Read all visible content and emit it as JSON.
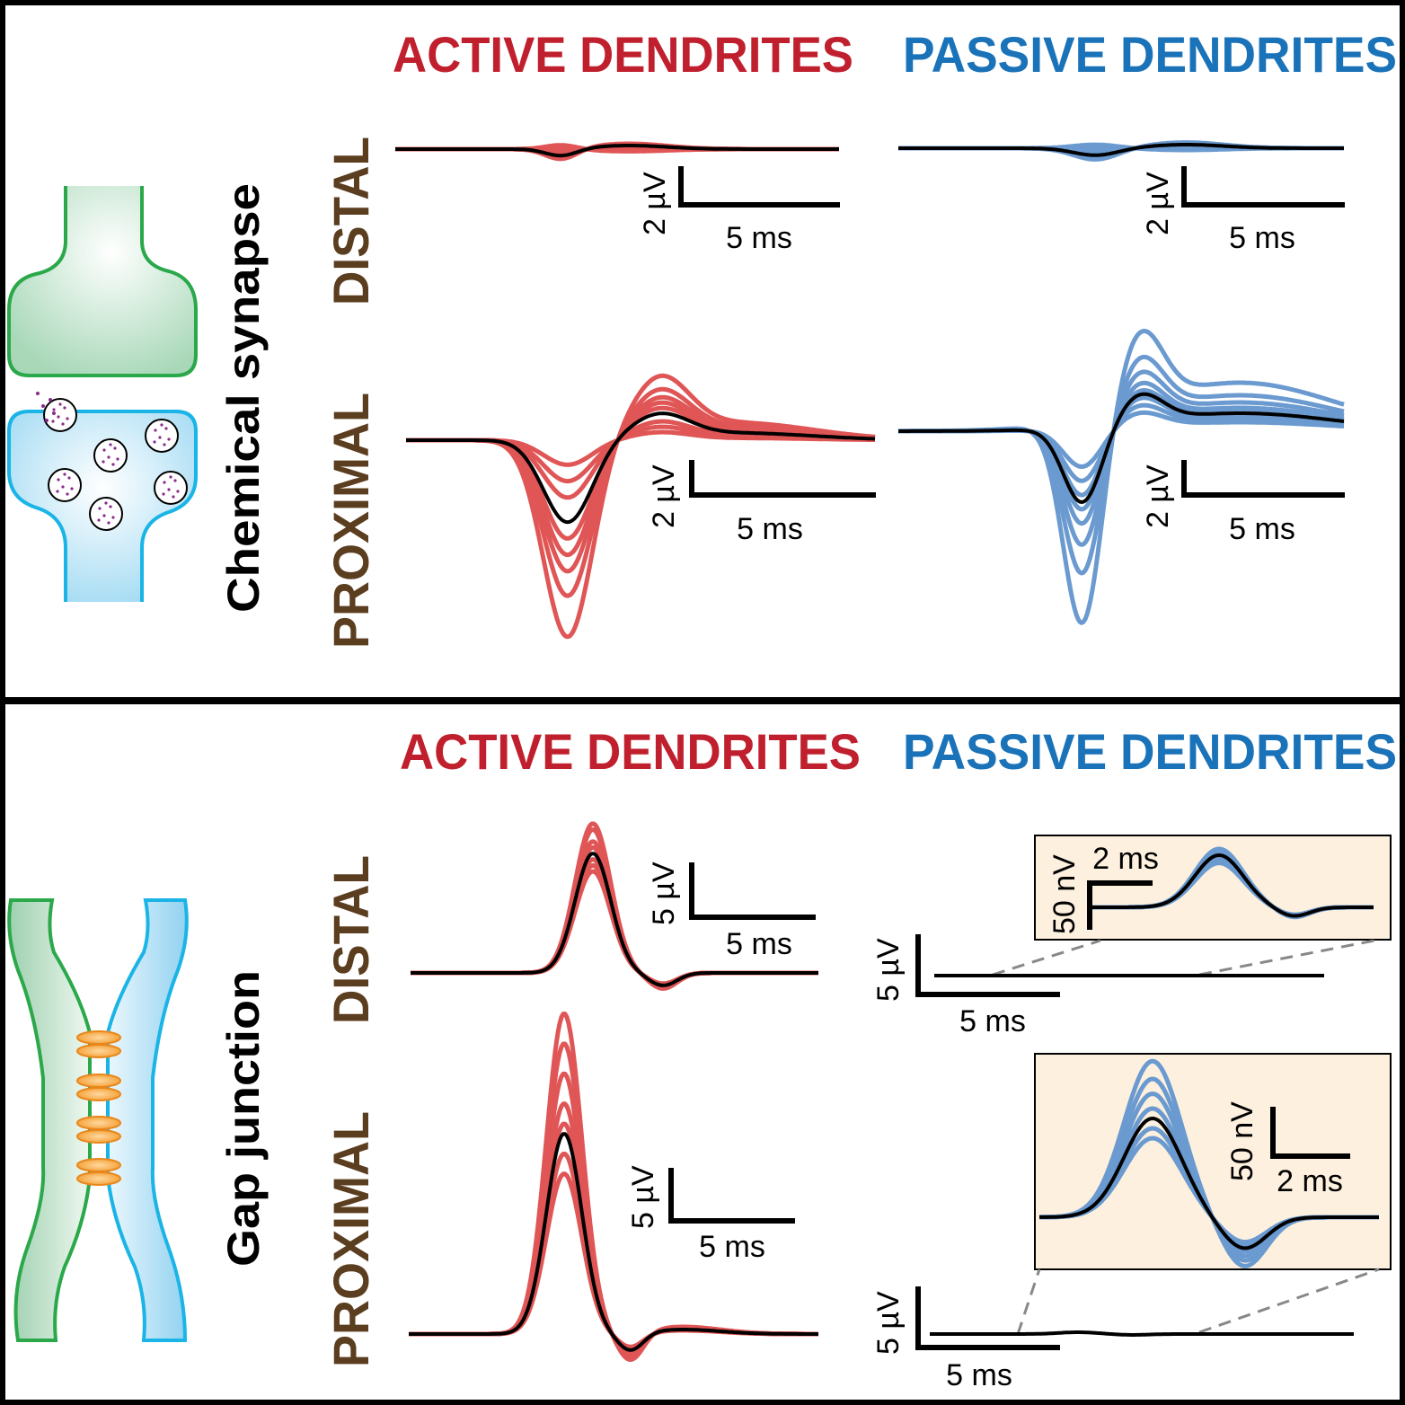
{
  "panels": [
    {
      "title": "Chemical synapse",
      "columns": [
        "ACTIVE DENDRITES",
        "PASSIVE DENDRITES"
      ],
      "rows": [
        "DISTAL",
        "PROXIMAL"
      ],
      "plots": [
        {
          "amplitude_bar": "2 µV",
          "time_bar": "5 ms"
        },
        {
          "amplitude_bar": "2 µV",
          "time_bar": "5 ms"
        },
        {
          "amplitude_bar": "2 µV",
          "time_bar": "5 ms"
        },
        {
          "amplitude_bar": "2 µV",
          "time_bar": "5 ms"
        }
      ]
    },
    {
      "title": "Gap junction",
      "columns": [
        "ACTIVE DENDRITES",
        "PASSIVE DENDRITES"
      ],
      "rows": [
        "DISTAL",
        "PROXIMAL"
      ],
      "plots": [
        {
          "amplitude_bar": "5 µV",
          "time_bar": "5 ms"
        },
        {
          "amplitude_bar": "5 µV",
          "time_bar": "5 ms",
          "inset": {
            "amplitude_bar": "50 nV",
            "time_bar": "2 ms"
          }
        },
        {
          "amplitude_bar": "5 µV",
          "time_bar": "5 ms"
        },
        {
          "amplitude_bar": "5 µV",
          "time_bar": "5 ms",
          "inset": {
            "amplitude_bar": "50 nV",
            "time_bar": "2 ms"
          }
        }
      ]
    }
  ]
}
